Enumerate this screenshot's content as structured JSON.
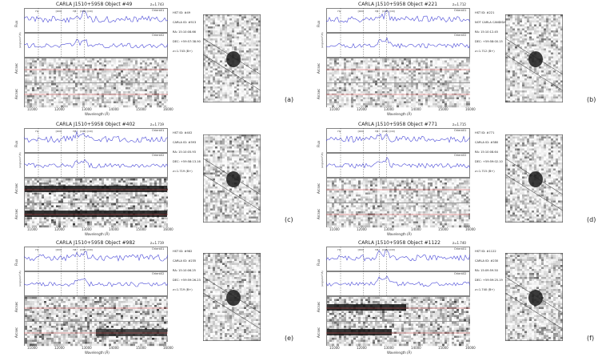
{
  "axis_labels": {
    "flux": "Flux",
    "flux_unit": "(erg/s/cm²/Å)",
    "arcsec": "Arcsec",
    "wavelength": "Wavelength (Å)",
    "orient1": "Orient01",
    "orient2": "Orient02"
  },
  "line_labels": [
    "Hγ",
    "[OIII]",
    "Hβ",
    "[OIII]",
    "[OII]"
  ],
  "wavelength_ticks": [
    "11000",
    "12000",
    "13000",
    "14000",
    "15000",
    "16000"
  ],
  "panels": [
    {
      "id": "a",
      "title": "CARLA J1510+5958 Object #49",
      "z": "z=1.743",
      "tag": "(a)",
      "info": [
        "HST ID: #49",
        "CARLA ID: #513",
        "RA: 15:10:08.66",
        "DEC: +59:57:38.90",
        "z=1.743 (B+)"
      ]
    },
    {
      "id": "b",
      "title": "CARLA J1510+5958 Object #221",
      "z": "z=1.712",
      "tag": "(b)",
      "info": [
        "HST ID: #221",
        "NOT CARLA CANDIDATE",
        "RA: 15:10:12.45",
        "DEC: +59:58:00.15",
        "z=1.712 (B+)"
      ]
    },
    {
      "id": "c",
      "title": "CARLA J1510+5958 Object #402",
      "z": "z=1.719",
      "tag": "(c)",
      "info": [
        "HST ID: #402",
        "CARLA ID: #393",
        "RA: 15:10:05.93",
        "DEC: +59:58:13.16",
        "z=1.719 (B+)"
      ]
    },
    {
      "id": "d",
      "title": "CARLA J1510+5958 Object #771",
      "z": "z=1.715",
      "tag": "(d)",
      "info": [
        "HST ID: #771",
        "CARLA ID: #380",
        "RA: 15:10:08.64",
        "DEC: +59:59:02.10",
        "z=1.715 (B+)"
      ]
    },
    {
      "id": "e",
      "title": "CARLA J1510+5958 Object #982",
      "z": "z=1.719",
      "tag": "(e)",
      "info": [
        "HST ID: #982",
        "CARLA ID: #235",
        "RA: 15:10:06.25",
        "DEC: +59:59:26.23",
        "z=1.719 (B+)"
      ]
    },
    {
      "id": "f",
      "title": "CARLA J1510+5958 Object #1122",
      "z": "z=1.740",
      "tag": "(f)",
      "info": [
        "HST ID: #1122",
        "CARLA ID: #230",
        "RA: 15:09:59.50",
        "DEC: +59:59:25.19",
        "z=1.740 (B+)"
      ]
    }
  ]
}
